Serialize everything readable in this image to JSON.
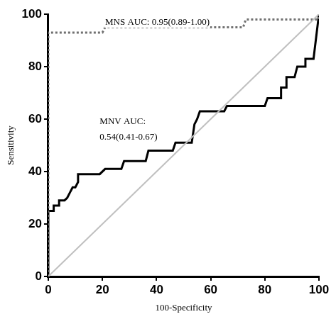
{
  "chart_data": {
    "type": "line",
    "x_label": "100-Specificity",
    "y_label": "Sensitivity",
    "xlim": [
      0,
      100
    ],
    "ylim": [
      0,
      100
    ],
    "xticks": [
      0,
      20,
      40,
      60,
      80,
      100
    ],
    "yticks": [
      0,
      20,
      40,
      60,
      80,
      100
    ],
    "grid": false,
    "annotations": [
      {
        "text": [
          "MNS AUC: 0.95(0.89-1.00)"
        ]
      },
      {
        "text": [
          "MNV AUC:",
          "0.54(0.41-0.67)"
        ]
      }
    ],
    "series": [
      {
        "color": "#c0c0c0",
        "line_style": "solid",
        "x": [
          0,
          100
        ],
        "values": [
          0,
          100
        ]
      },
      {
        "color": "#707070",
        "line_style": "dotted",
        "x": [
          0,
          0,
          20,
          21,
          72,
          73,
          100,
          100
        ],
        "values": [
          0,
          93,
          93,
          95,
          95,
          98,
          98,
          100
        ]
      },
      {
        "color": "#000000",
        "line_style": "solid",
        "x": [
          0,
          0,
          2,
          2,
          4,
          4,
          6,
          7,
          8,
          9,
          10,
          11,
          11,
          19,
          21,
          27,
          28,
          36,
          37,
          46,
          47,
          53,
          54,
          55,
          56,
          65,
          66,
          80,
          81,
          86,
          86,
          88,
          88,
          91,
          92,
          95,
          95,
          98,
          100
        ],
        "values": [
          0,
          25,
          25,
          27,
          27,
          29,
          29,
          30,
          32,
          34,
          34,
          36,
          39,
          39,
          41,
          41,
          44,
          44,
          48,
          48,
          51,
          51,
          58,
          60,
          63,
          63,
          65,
          65,
          68,
          68,
          72,
          72,
          76,
          76,
          80,
          80,
          83,
          83,
          100
        ]
      }
    ]
  }
}
